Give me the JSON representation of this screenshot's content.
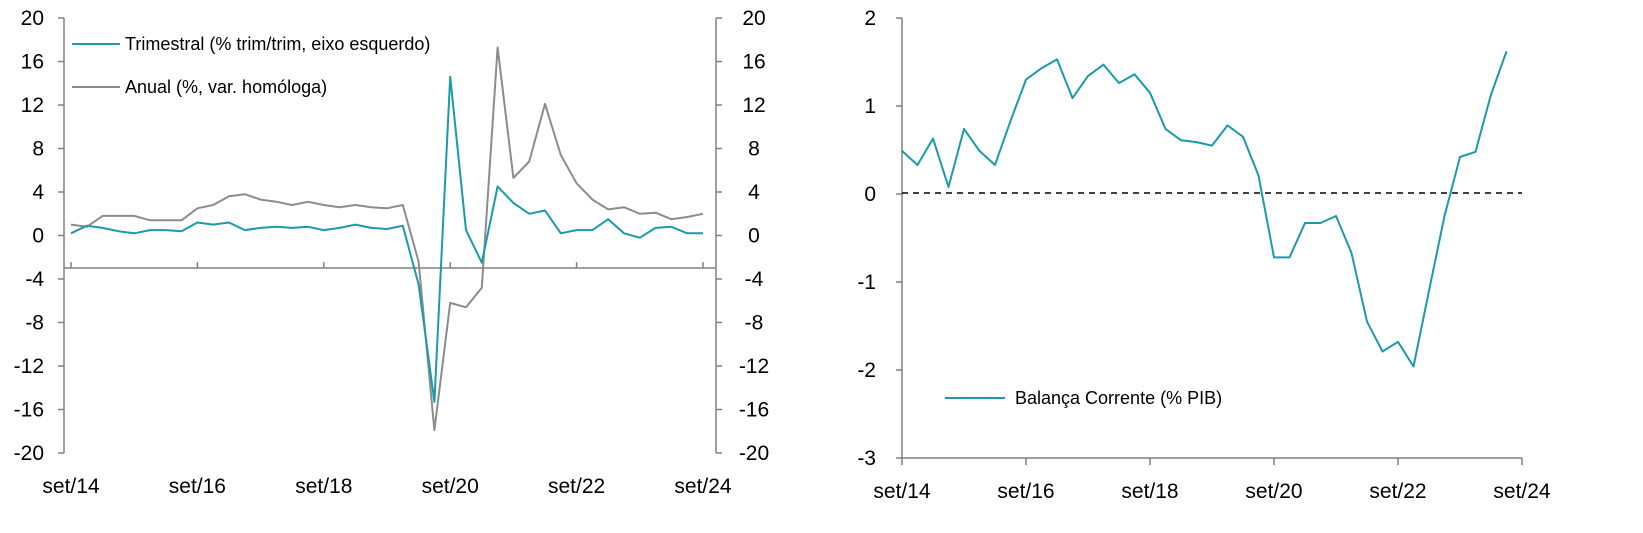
{
  "chart_data": [
    {
      "type": "line",
      "x": [
        "set/14",
        "dez/14",
        "mar/15",
        "jun/15",
        "set/15",
        "dez/15",
        "mar/16",
        "jun/16",
        "set/16",
        "dez/16",
        "mar/17",
        "jun/17",
        "set/17",
        "dez/17",
        "mar/18",
        "jun/18",
        "set/18",
        "dez/18",
        "mar/19",
        "jun/19",
        "set/19",
        "dez/19",
        "mar/20",
        "jun/20",
        "set/20",
        "dez/20",
        "mar/21",
        "jun/21",
        "set/21",
        "dez/21",
        "mar/22",
        "jun/22",
        "set/22",
        "dez/22",
        "mar/23",
        "jun/23",
        "set/23",
        "dez/23",
        "mar/24",
        "jun/24",
        "set/24"
      ],
      "x_tick_labels": [
        "set/14",
        "set/16",
        "set/18",
        "set/20",
        "set/22",
        "set/24"
      ],
      "x_tick_indices": [
        0,
        8,
        16,
        24,
        32,
        40
      ],
      "y_left_ticks": [
        "20",
        "16",
        "12",
        "8",
        "4",
        "0",
        "-4",
        "-8",
        "-12",
        "-16",
        "-20"
      ],
      "y_right_ticks": [
        "20",
        "16",
        "12",
        "8",
        "4",
        "0",
        "-4",
        "-8",
        "-12",
        "-16",
        "-20"
      ],
      "ylim": [
        -20,
        20
      ],
      "x_axis_crossing": -3,
      "series": [
        {
          "name": "Trimestral (% trim/trim, eixo esquerdo)",
          "color": "#1a9aaa",
          "axis": "left",
          "values": [
            0.2,
            0.9,
            0.7,
            0.4,
            0.2,
            0.5,
            0.5,
            0.4,
            1.2,
            1.0,
            1.2,
            0.5,
            0.7,
            0.8,
            0.7,
            0.8,
            0.5,
            0.7,
            1.0,
            0.7,
            0.6,
            0.9,
            -4.5,
            -15.3,
            14.6,
            0.5,
            -2.5,
            4.5,
            3.0,
            2.0,
            2.3,
            0.2,
            0.5,
            0.5,
            1.5,
            0.2,
            -0.2,
            0.7,
            0.8,
            0.2,
            0.2
          ]
        },
        {
          "name": "Anual (%, var. homóloga)",
          "color": "#8c8c8c",
          "axis": "right",
          "values": [
            1.0,
            0.8,
            1.8,
            1.8,
            1.8,
            1.4,
            1.4,
            1.4,
            2.5,
            2.8,
            3.6,
            3.8,
            3.3,
            3.1,
            2.8,
            3.1,
            2.8,
            2.6,
            2.8,
            2.6,
            2.5,
            2.8,
            -2.4,
            -17.9,
            -6.2,
            -6.6,
            -4.8,
            17.3,
            5.3,
            6.8,
            12.1,
            7.4,
            4.8,
            3.3,
            2.4,
            2.6,
            2.0,
            2.1,
            1.5,
            1.7,
            2.0
          ]
        }
      ]
    },
    {
      "type": "line",
      "x": [
        "set/14",
        "dez/14",
        "mar/15",
        "jun/15",
        "set/15",
        "dez/15",
        "mar/16",
        "jun/16",
        "set/16",
        "dez/16",
        "mar/17",
        "jun/17",
        "set/17",
        "dez/17",
        "mar/18",
        "jun/18",
        "set/18",
        "dez/18",
        "mar/19",
        "jun/19",
        "set/19",
        "dez/19",
        "mar/20",
        "jun/20",
        "set/20",
        "dez/20",
        "mar/21",
        "jun/21",
        "set/21",
        "dez/21",
        "mar/22",
        "jun/22",
        "set/22",
        "dez/22",
        "mar/23",
        "jun/23",
        "set/23",
        "dez/23",
        "mar/24",
        "jun/24"
      ],
      "x_tick_labels": [
        "set/14",
        "set/16",
        "set/18",
        "set/20",
        "set/22",
        "set/24"
      ],
      "x_tick_indices": [
        0,
        8,
        16,
        24,
        32,
        40
      ],
      "y_ticks": [
        "2",
        "1",
        "0",
        "-1",
        "-2",
        "-3"
      ],
      "ylim": [
        -3,
        2
      ],
      "reference_line": {
        "y": 0,
        "style": "dashed"
      },
      "series": [
        {
          "name": "Balança Corrente (% PIB)",
          "color": "#1a9aaa",
          "values": [
            0.49,
            0.33,
            0.63,
            0.08,
            0.74,
            0.49,
            0.33,
            0.83,
            1.3,
            1.43,
            1.53,
            1.09,
            1.34,
            1.47,
            1.26,
            1.36,
            1.15,
            0.74,
            0.61,
            0.59,
            0.55,
            0.78,
            0.65,
            0.21,
            -0.72,
            -0.72,
            -0.33,
            -0.33,
            -0.25,
            -0.67,
            -1.45,
            -1.79,
            -1.68,
            -1.96,
            -1.1,
            -0.25,
            0.42,
            0.48,
            1.13,
            1.62
          ]
        }
      ]
    }
  ]
}
